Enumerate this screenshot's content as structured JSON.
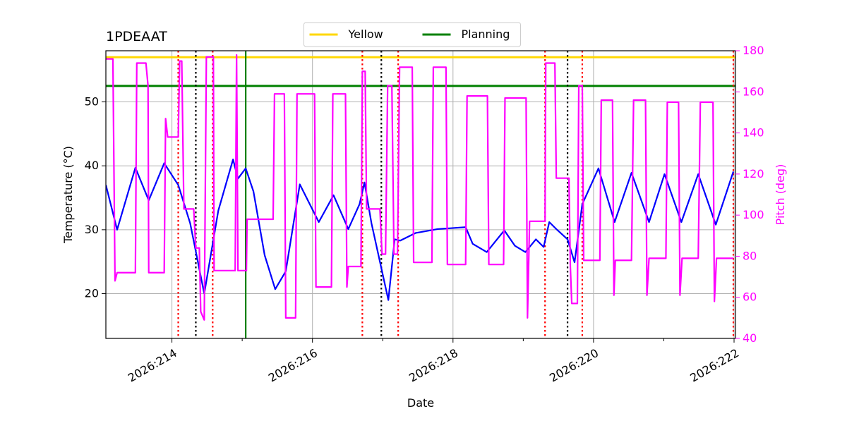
{
  "chart_data": {
    "type": "line",
    "title": "1PDEAAT",
    "xlabel": "Date",
    "ylabel": "Temperature (°C)",
    "y2label": "Pitch (deg)",
    "xlim": [
      213.06,
      222.02
    ],
    "xticks": [
      {
        "value": 214,
        "label": "2026:214"
      },
      {
        "value": 216,
        "label": "2026:216"
      },
      {
        "value": 218,
        "label": "2026:218"
      },
      {
        "value": 220,
        "label": "2026:220"
      },
      {
        "value": 222,
        "label": "2026:222"
      }
    ],
    "xminorticks": [
      215,
      217,
      219,
      221
    ],
    "ylim": [
      13,
      58
    ],
    "yticks": [
      20,
      30,
      40,
      50
    ],
    "y2lim": [
      40,
      180
    ],
    "y2ticks": [
      40,
      60,
      80,
      100,
      120,
      140,
      160,
      180
    ],
    "y2color": "#ff00ff",
    "grid": true,
    "legend": "upper center",
    "hlines": [
      {
        "name": "Yellow",
        "color": "#ffd700",
        "value": 57
      },
      {
        "name": "Planning",
        "color": "#008000",
        "value": 52.5
      }
    ],
    "vlines": [
      {
        "color": "#ff0000",
        "style": "dotted",
        "x": [
          214.09,
          214.58,
          216.71,
          217.22,
          219.31,
          219.84,
          221.99
        ]
      },
      {
        "color": "#000000",
        "style": "dotted",
        "x": [
          214.34,
          216.98,
          219.63
        ]
      },
      {
        "color": "#008000",
        "style": "solid",
        "x": [
          215.05
        ]
      }
    ],
    "series": [
      {
        "color": "#0000ff",
        "x": [
          213.06,
          213.22,
          213.48,
          213.67,
          213.89,
          214.09,
          214.26,
          214.46,
          214.66,
          214.87,
          214.94,
          215.05,
          215.16,
          215.32,
          215.47,
          215.62,
          215.82,
          216.09,
          216.3,
          216.51,
          216.67,
          216.74,
          216.84,
          216.98,
          217.08,
          217.17,
          217.25,
          217.47,
          217.78,
          218.18,
          218.28,
          218.48,
          218.73,
          218.88,
          219.03,
          219.18,
          219.29,
          219.37,
          219.48,
          219.63,
          219.73,
          219.84,
          220.07,
          220.3,
          220.54,
          220.79,
          221.01,
          221.25,
          221.49,
          221.74,
          221.99
        ],
        "values": [
          37,
          30,
          39.7,
          34.6,
          40.4,
          37,
          31,
          20,
          33,
          41,
          38,
          39.6,
          36,
          26,
          20.7,
          23.5,
          37.1,
          31.2,
          35.4,
          30.1,
          34,
          37.4,
          31,
          24,
          19,
          28.5,
          28.3,
          29.5,
          30.1,
          30.4,
          27.8,
          26.5,
          29.9,
          27.5,
          26.5,
          28.5,
          27.3,
          31.2,
          30,
          28.5,
          24.9,
          34,
          39.6,
          31.2,
          38.9,
          31.2,
          38.7,
          31.2,
          38.7,
          30.8,
          39.1
        ]
      },
      {
        "color": "#ff00ff",
        "axis": "y2",
        "x": [
          213.06,
          213.16,
          213.19,
          213.22,
          213.48,
          213.5,
          213.63,
          213.66,
          213.67,
          213.89,
          213.91,
          213.94,
          214.09,
          214.11,
          214.14,
          214.17,
          214.31,
          214.34,
          214.39,
          214.41,
          214.46,
          214.49,
          214.59,
          214.6,
          214.9,
          214.92,
          214.94,
          215.06,
          215.07,
          215.44,
          215.46,
          215.6,
          215.62,
          215.76,
          215.78,
          216.03,
          216.05,
          216.27,
          216.29,
          216.47,
          216.49,
          216.51,
          216.69,
          216.71,
          216.75,
          216.77,
          216.96,
          216.99,
          217.04,
          217.07,
          217.13,
          217.16,
          217.21,
          217.24,
          217.42,
          217.44,
          217.7,
          217.72,
          217.9,
          217.92,
          218.18,
          218.2,
          218.49,
          218.51,
          218.72,
          218.74,
          219.04,
          219.06,
          219.09,
          219.31,
          219.32,
          219.45,
          219.47,
          219.65,
          219.67,
          219.69,
          219.77,
          219.79,
          219.84,
          219.86,
          220.09,
          220.11,
          220.27,
          220.29,
          220.31,
          220.54,
          220.57,
          220.74,
          220.76,
          220.79,
          221.03,
          221.05,
          221.21,
          221.23,
          221.26,
          221.49,
          221.52,
          221.7,
          221.72,
          221.75,
          221.99
        ],
        "values": [
          176,
          176,
          68,
          72,
          72,
          174,
          174,
          163,
          72,
          72,
          147,
          138,
          138,
          175,
          175,
          103,
          103,
          84,
          84,
          53,
          49,
          177,
          177,
          73,
          73,
          178,
          73,
          73,
          98,
          98,
          159,
          159,
          50,
          50,
          159,
          159,
          65,
          65,
          159,
          159,
          65,
          75,
          75,
          170,
          170,
          103,
          103,
          81,
          81,
          163,
          163,
          81,
          81,
          172,
          172,
          77,
          77,
          172,
          172,
          76,
          76,
          158,
          158,
          76,
          76,
          157,
          157,
          50,
          97,
          97,
          174,
          174,
          118,
          118,
          75,
          57,
          57,
          163,
          163,
          78,
          78,
          156,
          156,
          61,
          78,
          78,
          156,
          156,
          61,
          79,
          79,
          155,
          155,
          61,
          79,
          79,
          155,
          155,
          58,
          79,
          79
        ]
      }
    ]
  }
}
